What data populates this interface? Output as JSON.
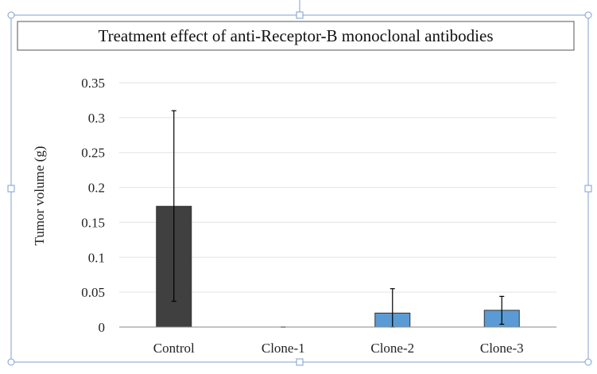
{
  "chart_data": {
    "type": "bar",
    "title": "Treatment effect of anti-Receptor-B monoclonal antibodies",
    "xlabel": "",
    "ylabel": "Tumor volume (g)",
    "categories": [
      "Control",
      "Clone-1",
      "Clone-2",
      "Clone-3"
    ],
    "values": [
      0.173,
      0.0,
      0.02,
      0.024
    ],
    "error_lower": [
      0.037,
      0.0,
      0.0,
      0.004
    ],
    "error_upper": [
      0.31,
      0.0,
      0.055,
      0.044
    ],
    "ylim": [
      0,
      0.35
    ],
    "yticks": [
      "0",
      "0.05",
      "0.1",
      "0.15",
      "0.2",
      "0.25",
      "0.3",
      "0.35"
    ],
    "bar_colors": [
      "#404040",
      "#5b9bd5",
      "#5b9bd5",
      "#5b9bd5"
    ],
    "grid": true,
    "legend": "none"
  }
}
